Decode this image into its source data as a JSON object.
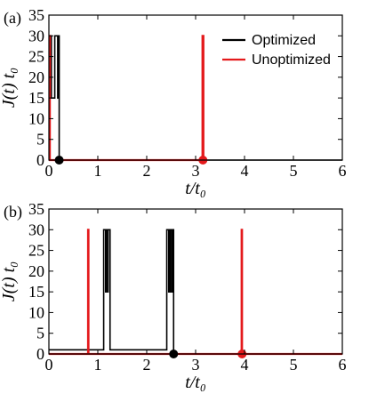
{
  "chart_data": [
    {
      "type": "line",
      "panel_label": "(a)",
      "xlabel": "t/t₀",
      "ylabel": "J(t) t₀",
      "xlim": [
        0,
        6
      ],
      "ylim": [
        0,
        35
      ],
      "xticks": [
        0,
        1,
        2,
        3,
        4,
        5,
        6
      ],
      "yticks": [
        0,
        5,
        10,
        15,
        20,
        25,
        30,
        35
      ],
      "grid": false,
      "legend_position": "top-right",
      "series": [
        {
          "name": "Optimized",
          "color": "#000000",
          "x": [
            0,
            0.05,
            0.05,
            0.12,
            0.12,
            0.18,
            0.18,
            0.2,
            0.2,
            0.21,
            0.21,
            6
          ],
          "y": [
            30,
            30,
            15,
            15,
            30,
            30,
            15,
            15,
            30,
            30,
            0,
            0
          ],
          "marker": {
            "x": 0.21,
            "y": 0
          }
        },
        {
          "name": "Unoptimized",
          "color": "#e41a1c",
          "x": [
            0,
            0.02,
            0.02,
            3.14,
            3.14,
            3.16,
            3.16
          ],
          "y": [
            30,
            30,
            0,
            0,
            30,
            30,
            0
          ],
          "marker": {
            "x": 3.15,
            "y": 0
          }
        }
      ]
    },
    {
      "type": "line",
      "panel_label": "(b)",
      "xlabel": "t/t₀",
      "ylabel": "J(t) t₀",
      "xlim": [
        0,
        6
      ],
      "ylim": [
        0,
        35
      ],
      "xticks": [
        0,
        1,
        2,
        3,
        4,
        5,
        6
      ],
      "yticks": [
        0,
        5,
        10,
        15,
        20,
        25,
        30,
        35
      ],
      "grid": false,
      "series": [
        {
          "name": "Optimized",
          "color": "#000000",
          "x": [
            0,
            1.12,
            1.12,
            1.16,
            1.16,
            1.17,
            1.17,
            1.2,
            1.2,
            1.21,
            1.21,
            1.25,
            1.25,
            2.41,
            2.41,
            2.45,
            2.45,
            2.46,
            2.46,
            2.48,
            2.48,
            2.49,
            2.49,
            2.52,
            2.52,
            2.53,
            2.53,
            2.55,
            2.55,
            6
          ],
          "y": [
            1,
            1,
            30,
            30,
            15,
            15,
            30,
            30,
            15,
            15,
            30,
            30,
            1,
            1,
            30,
            30,
            15,
            15,
            30,
            30,
            15,
            15,
            30,
            30,
            15,
            15,
            30,
            30,
            0,
            0
          ],
          "marker": {
            "x": 2.55,
            "y": 0
          }
        },
        {
          "name": "Unoptimized",
          "color": "#e41a1c",
          "x": [
            0,
            0.8,
            0.8,
            0.81,
            0.81,
            3.94,
            3.94,
            3.95,
            3.95,
            6
          ],
          "y": [
            0,
            0,
            30,
            30,
            0,
            0,
            30,
            30,
            0,
            0
          ],
          "marker": {
            "x": 3.95,
            "y": 0
          }
        }
      ]
    }
  ]
}
